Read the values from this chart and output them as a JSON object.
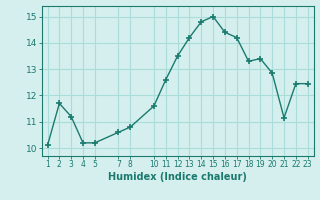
{
  "x": [
    1,
    2,
    3,
    4,
    5,
    7,
    8,
    10,
    11,
    12,
    13,
    14,
    15,
    16,
    17,
    18,
    19,
    20,
    21,
    22,
    23
  ],
  "y": [
    10.1,
    11.7,
    11.2,
    10.2,
    10.2,
    10.6,
    10.8,
    11.6,
    12.6,
    13.5,
    14.2,
    14.8,
    15.0,
    14.4,
    14.2,
    13.3,
    13.4,
    12.85,
    11.15,
    12.45,
    12.45
  ],
  "xticks": [
    1,
    2,
    3,
    4,
    5,
    7,
    8,
    10,
    11,
    12,
    13,
    14,
    15,
    16,
    17,
    18,
    19,
    20,
    21,
    22,
    23
  ],
  "yticks": [
    10,
    11,
    12,
    13,
    14,
    15
  ],
  "ylim": [
    9.7,
    15.4
  ],
  "xlim": [
    0.5,
    23.5
  ],
  "xlabel": "Humidex (Indice chaleur)",
  "line_color": "#1a7a6e",
  "marker": "+",
  "marker_size": 4,
  "bg_color": "#d5efee",
  "grid_color": "#aaddda"
}
